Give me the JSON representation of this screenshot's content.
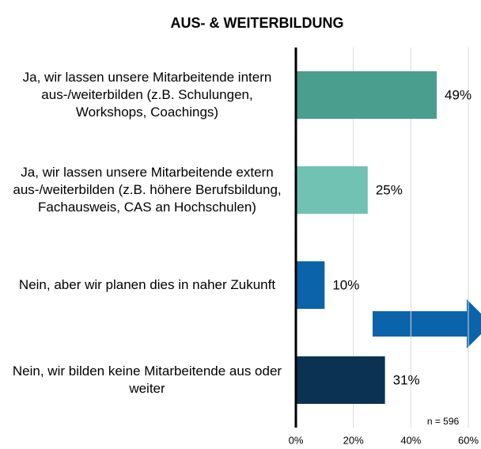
{
  "chart_data": {
    "type": "bar",
    "orientation": "horizontal",
    "title": "AUS- & WEITERBILDUNG",
    "categories": [
      "Ja, wir lassen unsere Mitarbeitende intern aus-/weiterbilden (z.B. Schulungen, Workshops, Coachings)",
      "Ja, wir lassen unsere Mitarbeitende extern aus-/weiterbilden (z.B. höhere Berufsbildung, Fachausweis, CAS an Hochschulen)",
      "Nein, aber wir planen dies in naher Zukunft",
      "Nein, wir bilden keine Mitarbeitende aus oder weiter"
    ],
    "values": [
      49,
      25,
      10,
      31
    ],
    "value_labels": [
      "49%",
      "25%",
      "10%",
      "31%"
    ],
    "colors": [
      "#4a9e8e",
      "#72c2b4",
      "#0b64a9",
      "#0b3252"
    ],
    "xlim": [
      0,
      60
    ],
    "xticks": [
      {
        "value": 0,
        "label": "0%"
      },
      {
        "value": 20,
        "label": "20%"
      },
      {
        "value": 40,
        "label": "40%"
      },
      {
        "value": 60,
        "label": "60%"
      }
    ],
    "grid": true,
    "annotation": "n = 596"
  }
}
